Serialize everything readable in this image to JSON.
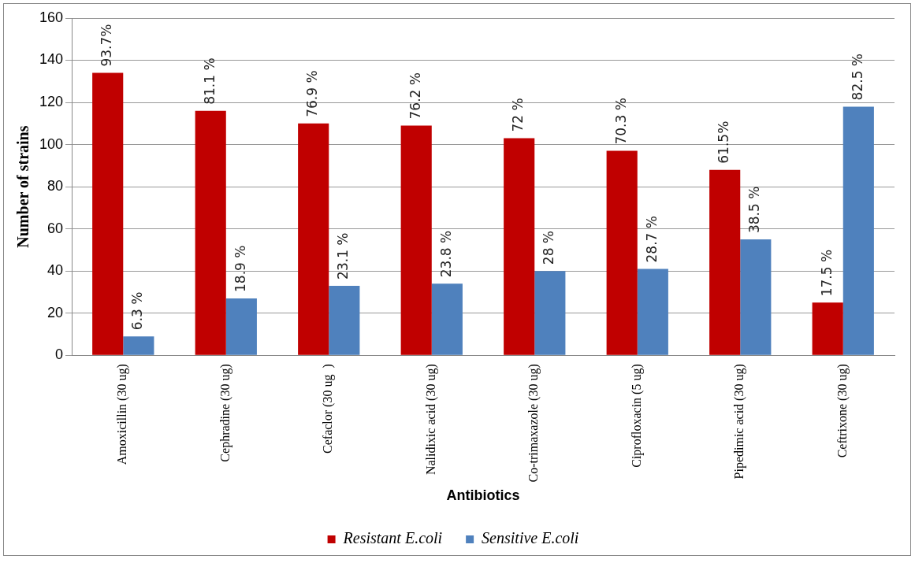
{
  "chart_data": {
    "type": "bar",
    "xlabel": "Antibiotics",
    "ylabel": "Number of strains",
    "categories": [
      "Amoxicillin (30 ug)",
      "Cephradine (30 ug)",
      "Cefaclor (30 ug  )",
      "Nalidixic acid (30 ug)",
      "Co-trimaxazole (30 ug)",
      "Ciprofloxacin (5 ug)",
      "Pipedimic acid (30 ug)",
      "Ceftrixone (30 ug)"
    ],
    "series": [
      {
        "name": "Resistant E.coli",
        "color": "#c00000",
        "values": [
          134,
          116,
          110,
          109,
          103,
          97,
          88,
          25
        ]
      },
      {
        "name": "Sensitive E.coli",
        "color": "#4f81bd",
        "values": [
          9,
          27,
          33,
          34,
          40,
          41,
          55,
          118
        ]
      }
    ],
    "annotations": [
      {
        "text": "93.7%",
        "x": "Amoxicillin (30 ug)",
        "y": 134
      },
      {
        "text": "81.1 %",
        "x": "Cephradine (30 ug)",
        "y": 116
      },
      {
        "text": "76.9 %",
        "x": "Cefaclor (30 ug  )",
        "y": 110
      },
      {
        "text": "76.2 %",
        "x": "Nalidixic acid (30 ug)",
        "y": 109
      },
      {
        "text": "72 %",
        "x": "Co-trimaxazole (30 ug)",
        "y": 103
      },
      {
        "text": "70.3 %",
        "x": "Ciprofloxacin (5 ug)",
        "y": 97
      },
      {
        "text": "61.5%",
        "x": "Pipedimic acid (30 ug)",
        "y": 88
      },
      {
        "text": "17.5 %",
        "x": "Ceftrixone (30 ug)",
        "y": 25
      },
      {
        "text": "6.3 %",
        "x": "Amoxicillin (30 ug)",
        "y": 9
      },
      {
        "text": "18.9 %",
        "x": "Cephradine (30 ug)",
        "y": 27
      },
      {
        "text": "23.1 %",
        "x": "Cefaclor (30 ug  )",
        "y": 33
      },
      {
        "text": "23.8 %",
        "x": "Nalidixic acid (30 ug)",
        "y": 34
      },
      {
        "text": "28 %",
        "x": "Co-trimaxazole (30 ug)",
        "y": 40
      },
      {
        "text": "28.7 %",
        "x": "Ciprofloxacin (5 ug)",
        "y": 41
      },
      {
        "text": "38.5 %",
        "x": "Pipedimic acid (30 ug)",
        "y": 55
      },
      {
        "text": "82.5 %",
        "x": "Ceftrixone (30 ug)",
        "y": 118
      }
    ],
    "ylim": [
      0,
      160
    ],
    "yticks": [
      0,
      20,
      40,
      60,
      80,
      100,
      120,
      140,
      160
    ],
    "grid": "y",
    "legend": "bottom"
  }
}
